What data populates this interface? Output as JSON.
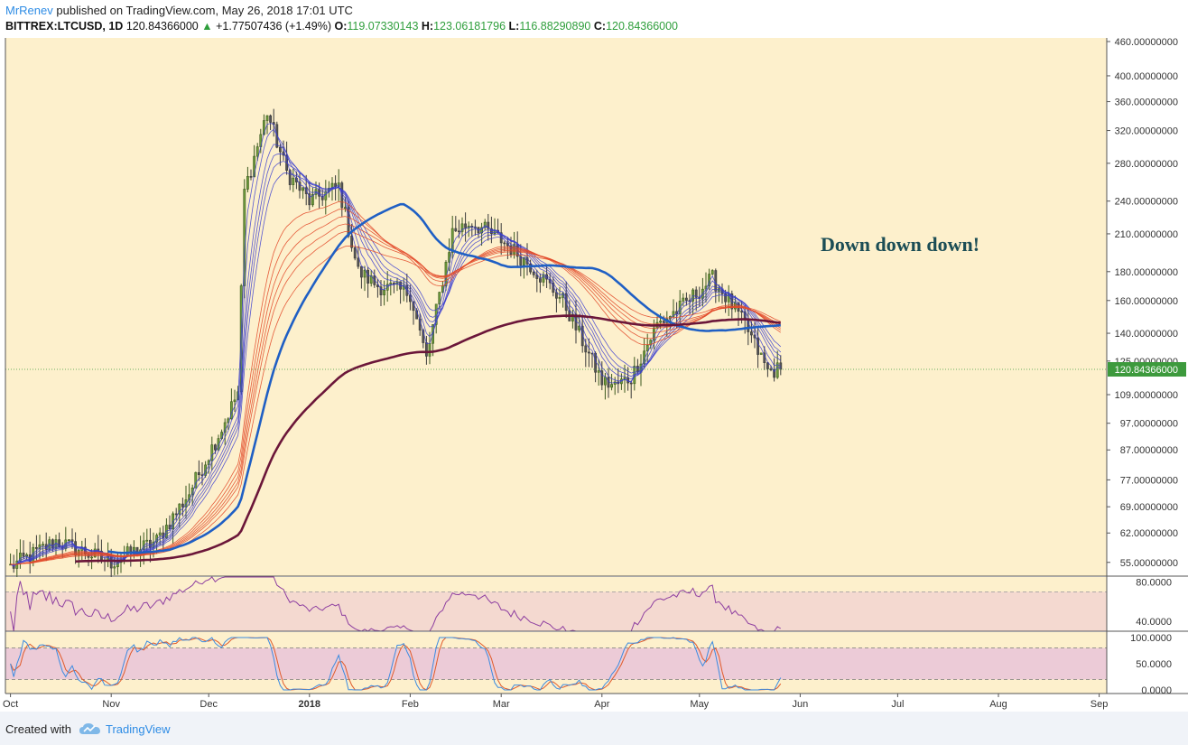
{
  "header": {
    "author": "MrRenev",
    "published": "published on TradingView.com, May 26, 2018 17:01 UTC",
    "symbol": "BITTREX:LTCUSD, 1D",
    "last": "120.84366000",
    "change": "+1.77507436 (+1.49%)",
    "o_label": "O:",
    "o_value": "119.07330143",
    "h_label": "H:",
    "h_value": "123.06181796",
    "l_label": "L:",
    "l_value": "116.88290890",
    "c_label": "C:",
    "c_value": "120.84366000"
  },
  "footer": {
    "created": "Created with",
    "brand": "TradingView"
  },
  "colors": {
    "background": "#fdf0cc",
    "up": "#3d5a1f",
    "down": "#3a3a3a",
    "ema_fast": "#3a3dd0",
    "ema_slow": "#e24a2a",
    "ma_blue": "#1f5fc4",
    "ma_maroon": "#6b1639",
    "rsi": "#8e3fa0",
    "stoch_k": "#3c8be0",
    "stoch_d": "#e05a2a",
    "price_tag": "#3d9a3d"
  },
  "chart_data": [
    {
      "type": "candlestick",
      "annotation": "Down down down!",
      "y_axis_scale": "log",
      "ylim": [
        52,
        460
      ],
      "y_ticks": [
        "460.00000000",
        "400.00000000",
        "360.00000000",
        "320.00000000",
        "280.00000000",
        "240.00000000",
        "210.00000000",
        "180.00000000",
        "160.00000000",
        "140.00000000",
        "125.00000000",
        "109.00000000",
        "97.00000000",
        "87.00000000",
        "77.00000000",
        "69.00000000",
        "62.00000000",
        "55.00000000"
      ],
      "last_price_tag": "120.84366000",
      "x_axis_labels": [
        "Oct",
        "Nov",
        "Dec",
        "2018",
        "Feb",
        "Mar",
        "Apr",
        "May",
        "Jun",
        "Jul",
        "Aug",
        "Sep"
      ],
      "price_path_key_points": {
        "dates": [
          "2017-10-01",
          "2017-10-15",
          "2017-11-01",
          "2017-11-15",
          "2017-11-25",
          "2017-12-05",
          "2017-12-10",
          "2017-12-12",
          "2017-12-19",
          "2017-12-25",
          "2018-01-01",
          "2018-01-10",
          "2018-01-16",
          "2018-01-22",
          "2018-02-01",
          "2018-02-06",
          "2018-02-14",
          "2018-02-20",
          "2018-03-01",
          "2018-03-10",
          "2018-03-20",
          "2018-04-01",
          "2018-04-05",
          "2018-04-10",
          "2018-04-18",
          "2018-04-25",
          "2018-05-05",
          "2018-05-10",
          "2018-05-15",
          "2018-05-22",
          "2018-05-26"
        ],
        "close": [
          54,
          60,
          55,
          60,
          73,
          95,
          110,
          250,
          345,
          270,
          240,
          255,
          180,
          170,
          165,
          126,
          212,
          220,
          205,
          185,
          160,
          115,
          113,
          117,
          145,
          155,
          175,
          160,
          145,
          120,
          120.84
        ]
      },
      "indicators": [
        "EMA ribbon (fast, blue/purple)",
        "EMA ribbon (slow, red)",
        "MA blue",
        "MA maroon"
      ]
    },
    {
      "type": "line",
      "name": "RSI",
      "ylim": [
        30,
        85
      ],
      "y_ticks": [
        "80.0000",
        "40.0000"
      ],
      "band": [
        30,
        70
      ]
    },
    {
      "type": "line",
      "name": "Stoch RSI",
      "ylim": [
        0,
        100
      ],
      "y_ticks": [
        "100.0000",
        "50.0000",
        "0.0000"
      ],
      "band": [
        20,
        80
      ],
      "series": [
        {
          "values": []
        },
        {
          "values": []
        }
      ]
    }
  ]
}
